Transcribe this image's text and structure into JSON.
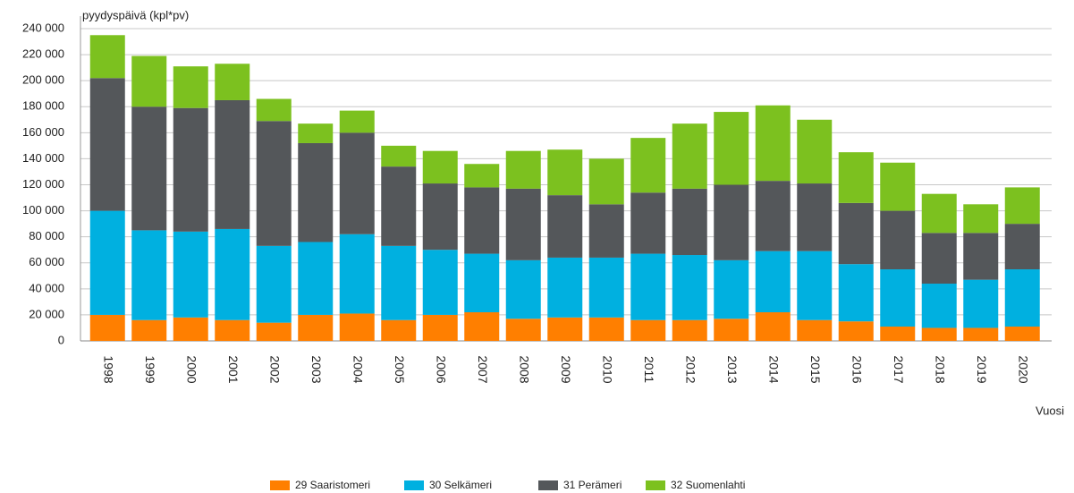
{
  "chart_data": {
    "type": "stacked_bar",
    "y_label": "pyydyspäivä (kpl*pv)",
    "x_label": "Vuosi",
    "categories": [
      "1998",
      "1999",
      "2000",
      "2001",
      "2002",
      "2003",
      "2004",
      "2005",
      "2006",
      "2007",
      "2008",
      "2009",
      "2010",
      "2011",
      "2012",
      "2013",
      "2014",
      "2015",
      "2016",
      "2017",
      "2018",
      "2019",
      "2020"
    ],
    "series": [
      {
        "name": "29 Saaristomeri",
        "color": "#ff7f00",
        "values": [
          20000,
          16000,
          18000,
          16000,
          14000,
          20000,
          21000,
          16000,
          20000,
          22000,
          17000,
          18000,
          18000,
          16000,
          16000,
          17000,
          22000,
          16000,
          15000,
          11000,
          10000,
          10000,
          11000
        ]
      },
      {
        "name": "30 Selkämeri",
        "color": "#00b0e0",
        "values": [
          80000,
          69000,
          66000,
          70000,
          59000,
          56000,
          61000,
          57000,
          50000,
          45000,
          45000,
          46000,
          46000,
          51000,
          50000,
          45000,
          47000,
          53000,
          44000,
          44000,
          34000,
          37000,
          44000
        ]
      },
      {
        "name": "31 Perämeri",
        "color": "#54575a",
        "values": [
          102000,
          95000,
          95000,
          99000,
          96000,
          76000,
          78000,
          61000,
          51000,
          51000,
          55000,
          48000,
          41000,
          47000,
          51000,
          58000,
          54000,
          52000,
          47000,
          45000,
          39000,
          36000,
          35000
        ]
      },
      {
        "name": "32 Suomenlahti",
        "color": "#7cc11f",
        "values": [
          33000,
          39000,
          32000,
          28000,
          17000,
          15000,
          17000,
          16000,
          25000,
          18000,
          29000,
          35000,
          35000,
          42000,
          50000,
          56000,
          58000,
          49000,
          39000,
          37000,
          30000,
          22000,
          28000
        ]
      }
    ],
    "ylim": [
      0,
      240000
    ],
    "yticks": [
      0,
      {
        "value": 20000,
        "label": "20 000"
      },
      {
        "value": 40000,
        "label": "40 000"
      },
      {
        "value": 60000,
        "label": "60 000"
      },
      {
        "value": 80000,
        "label": "80 000"
      },
      {
        "value": 100000,
        "label": "100 000"
      },
      {
        "value": 120000,
        "label": "120 000"
      },
      {
        "value": 140000,
        "label": "140 000"
      },
      {
        "value": 160000,
        "label": "160 000"
      },
      {
        "value": 180000,
        "label": "180 000"
      },
      {
        "value": 200000,
        "label": "200 000"
      },
      {
        "value": 220000,
        "label": "220 000"
      },
      {
        "value": 240000,
        "label": "240 000"
      }
    ],
    "grid": true
  }
}
